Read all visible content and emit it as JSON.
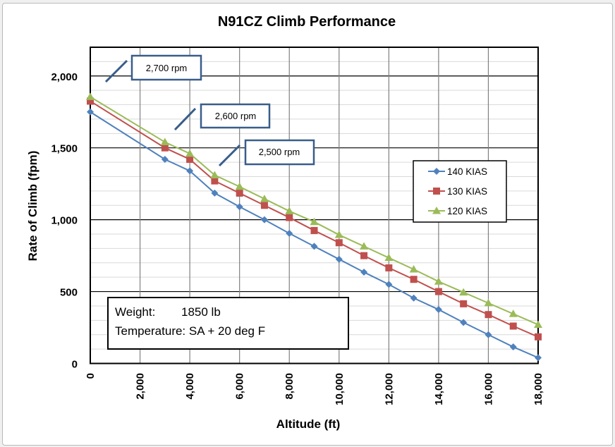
{
  "chart_data": {
    "type": "line",
    "title": "N91CZ Climb Performance",
    "xlabel": "Altitude (ft)",
    "ylabel": "Rate of Climb (fpm)",
    "xlim": [
      0,
      18000
    ],
    "ylim": [
      0,
      2200
    ],
    "x_ticks": [
      0,
      2000,
      4000,
      6000,
      8000,
      10000,
      12000,
      14000,
      16000,
      18000
    ],
    "x_tick_labels": [
      "0",
      "2,000",
      "4,000",
      "6,000",
      "8,000",
      "10,000",
      "12,000",
      "14,000",
      "16,000",
      "18,000"
    ],
    "y_ticks": [
      0,
      500,
      1000,
      1500,
      2000
    ],
    "y_tick_labels": [
      "0",
      "500",
      "1,000",
      "1,500",
      "2,000"
    ],
    "y_minor_step": 100,
    "grid": true,
    "legend_position": "right-middle",
    "x": [
      0,
      3000,
      4000,
      5000,
      6000,
      7000,
      8000,
      9000,
      10000,
      11000,
      12000,
      13000,
      14000,
      15000,
      16000,
      17000,
      18000
    ],
    "series": [
      {
        "name": "140 KIAS",
        "color": "#4f81bd",
        "marker": "diamond",
        "values": [
          1750,
          1420,
          1340,
          1185,
          1090,
          1000,
          905,
          815,
          725,
          635,
          550,
          455,
          375,
          285,
          200,
          115,
          40
        ]
      },
      {
        "name": "130 KIAS",
        "color": "#c0504d",
        "marker": "square",
        "values": [
          1825,
          1500,
          1420,
          1270,
          1185,
          1100,
          1015,
          925,
          840,
          750,
          665,
          585,
          500,
          415,
          340,
          260,
          185
        ]
      },
      {
        "name": "120 KIAS",
        "color": "#9bbb59",
        "marker": "triangle",
        "values": [
          1855,
          1540,
          1460,
          1310,
          1230,
          1145,
          1060,
          985,
          895,
          815,
          735,
          655,
          570,
          495,
          420,
          345,
          270
        ]
      }
    ],
    "annotations": [
      {
        "text": "2,700 rpm",
        "points_to_x": 500,
        "points_to_y": 1950
      },
      {
        "text": "2,600 rpm",
        "points_to_x": 3300,
        "points_to_y": 1625
      },
      {
        "text": "2,500 rpm",
        "points_to_x": 5200,
        "points_to_y": 1375
      }
    ],
    "note_box": {
      "line1_label": "Weight:",
      "line1_value": "1850 lb",
      "line2": "Temperature: SA + 20 deg F"
    }
  },
  "colors": {
    "callout_border": "#385d8a",
    "major_grid": "#000000",
    "minor_grid": "#d9d9d9",
    "vertical_grid": "#808080"
  }
}
